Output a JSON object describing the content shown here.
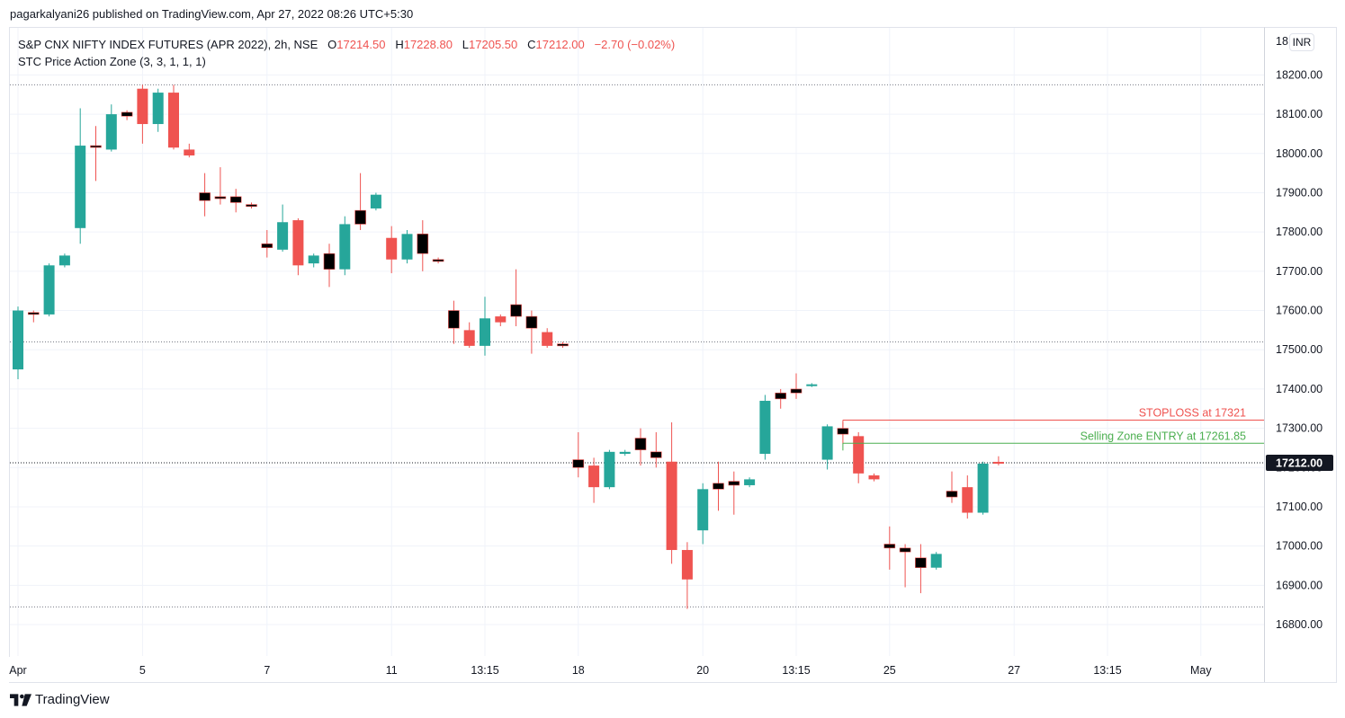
{
  "header": {
    "published_by": "pagarkalyani26 published on TradingView.com, Apr 27, 2022 08:26 UTC+5:30"
  },
  "legend": {
    "symbol": "S&P CNX NIFTY INDEX FUTURES (APR 2022), 2h, NSE",
    "open_label": "O",
    "open": "17214.50",
    "high_label": "H",
    "high": "17228.80",
    "low_label": "L",
    "low": "17205.50",
    "close_label": "C",
    "close": "17212.00",
    "change": "−2.70 (−0.02%)",
    "indicator": "STC Price Action Zone (3, 3, 1, 1, 1)"
  },
  "currency": "INR",
  "footer": {
    "brand": "TradingView",
    "logo_icon": "tradingview-logo-icon"
  },
  "colors": {
    "up": "#26a69a",
    "down": "#ef5350",
    "neutral": "#000000",
    "stoploss": "#ef5350",
    "entry": "#4caf50",
    "grid": "#f0f3fa"
  },
  "chart_data": {
    "type": "candlestick",
    "ylim": [
      16720,
      18320
    ],
    "y_ticks": [
      "18200.00",
      "18100.00",
      "18000.00",
      "17900.00",
      "17800.00",
      "17700.00",
      "17600.00",
      "17500.00",
      "17400.00",
      "17300.00",
      "17200.00",
      "17100.00",
      "17000.00",
      "16900.00",
      "16800.00"
    ],
    "y_tick_values": [
      18200,
      18100,
      18000,
      17900,
      17800,
      17700,
      17600,
      17500,
      17400,
      17300,
      17200,
      17100,
      17000,
      16900,
      16800
    ],
    "top_tick_partial": "18",
    "x_labels": [
      {
        "label": "Apr",
        "bar": 0
      },
      {
        "label": "5",
        "bar": 8
      },
      {
        "label": "7",
        "bar": 16
      },
      {
        "label": "11",
        "bar": 24
      },
      {
        "label": "13:15",
        "bar": 30
      },
      {
        "label": "18",
        "bar": 36
      },
      {
        "label": "20",
        "bar": 44
      },
      {
        "label": "13:15",
        "bar": 50
      },
      {
        "label": "25",
        "bar": 56
      },
      {
        "label": "27",
        "bar": 64
      },
      {
        "label": "13:15",
        "bar": 70
      },
      {
        "label": "May",
        "bar": 76
      }
    ],
    "last_price": "17212.00",
    "last_price_value": 17212,
    "reference_levels": [
      18175,
      17520,
      16845
    ],
    "candles": [
      {
        "o": 17450,
        "h": 17610,
        "l": 17425,
        "c": 17600,
        "t": "up"
      },
      {
        "o": 17595,
        "h": 17600,
        "l": 17570,
        "c": 17590,
        "t": "neutral"
      },
      {
        "o": 17590,
        "h": 17720,
        "l": 17585,
        "c": 17715,
        "t": "up"
      },
      {
        "o": 17715,
        "h": 17745,
        "l": 17710,
        "c": 17740,
        "t": "up"
      },
      {
        "o": 17810,
        "h": 18115,
        "l": 17770,
        "c": 18020,
        "t": "up"
      },
      {
        "o": 18020,
        "h": 18070,
        "l": 17930,
        "c": 18020,
        "t": "neutral"
      },
      {
        "o": 18010,
        "h": 18125,
        "l": 18005,
        "c": 18100,
        "t": "up"
      },
      {
        "o": 18105,
        "h": 18110,
        "l": 18085,
        "c": 18095,
        "t": "neutral"
      },
      {
        "o": 18165,
        "h": 18175,
        "l": 18025,
        "c": 18075,
        "t": "down"
      },
      {
        "o": 18075,
        "h": 18165,
        "l": 18055,
        "c": 18155,
        "t": "up"
      },
      {
        "o": 18155,
        "h": 18175,
        "l": 18010,
        "c": 18015,
        "t": "down"
      },
      {
        "o": 18010,
        "h": 18025,
        "l": 17990,
        "c": 17995,
        "t": "down"
      },
      {
        "o": 17900,
        "h": 17950,
        "l": 17840,
        "c": 17880,
        "t": "neutral"
      },
      {
        "o": 17885,
        "h": 17965,
        "l": 17870,
        "c": 17890,
        "t": "neutral"
      },
      {
        "o": 17890,
        "h": 17910,
        "l": 17850,
        "c": 17875,
        "t": "neutral"
      },
      {
        "o": 17870,
        "h": 17875,
        "l": 17860,
        "c": 17865,
        "t": "neutral"
      },
      {
        "o": 17770,
        "h": 17805,
        "l": 17735,
        "c": 17760,
        "t": "neutral"
      },
      {
        "o": 17755,
        "h": 17870,
        "l": 17750,
        "c": 17825,
        "t": "up"
      },
      {
        "o": 17830,
        "h": 17835,
        "l": 17690,
        "c": 17715,
        "t": "down"
      },
      {
        "o": 17720,
        "h": 17745,
        "l": 17710,
        "c": 17740,
        "t": "up"
      },
      {
        "o": 17745,
        "h": 17770,
        "l": 17660,
        "c": 17705,
        "t": "neutral"
      },
      {
        "o": 17705,
        "h": 17840,
        "l": 17690,
        "c": 17820,
        "t": "up"
      },
      {
        "o": 17820,
        "h": 17950,
        "l": 17805,
        "c": 17855,
        "t": "neutral"
      },
      {
        "o": 17860,
        "h": 17900,
        "l": 17855,
        "c": 17895,
        "t": "up"
      },
      {
        "o": 17785,
        "h": 17815,
        "l": 17695,
        "c": 17730,
        "t": "down"
      },
      {
        "o": 17730,
        "h": 17805,
        "l": 17720,
        "c": 17795,
        "t": "up"
      },
      {
        "o": 17795,
        "h": 17830,
        "l": 17700,
        "c": 17745,
        "t": "neutral"
      },
      {
        "o": 17730,
        "h": 17735,
        "l": 17720,
        "c": 17725,
        "t": "neutral"
      },
      {
        "o": 17600,
        "h": 17625,
        "l": 17515,
        "c": 17555,
        "t": "neutral"
      },
      {
        "o": 17550,
        "h": 17570,
        "l": 17505,
        "c": 17510,
        "t": "down"
      },
      {
        "o": 17510,
        "h": 17635,
        "l": 17485,
        "c": 17580,
        "t": "up"
      },
      {
        "o": 17585,
        "h": 17590,
        "l": 17560,
        "c": 17570,
        "t": "down"
      },
      {
        "o": 17615,
        "h": 17705,
        "l": 17560,
        "c": 17585,
        "t": "neutral"
      },
      {
        "o": 17585,
        "h": 17600,
        "l": 17490,
        "c": 17555,
        "t": "neutral"
      },
      {
        "o": 17545,
        "h": 17555,
        "l": 17505,
        "c": 17510,
        "t": "down"
      },
      {
        "o": 17510,
        "h": 17520,
        "l": 17505,
        "c": 17515,
        "t": "neutral"
      },
      {
        "o": 17220,
        "h": 17290,
        "l": 17175,
        "c": 17200,
        "t": "neutral"
      },
      {
        "o": 17205,
        "h": 17225,
        "l": 17110,
        "c": 17150,
        "t": "down"
      },
      {
        "o": 17150,
        "h": 17245,
        "l": 17145,
        "c": 17240,
        "t": "up"
      },
      {
        "o": 17240,
        "h": 17245,
        "l": 17230,
        "c": 17235,
        "t": "up"
      },
      {
        "o": 17275,
        "h": 17300,
        "l": 17205,
        "c": 17245,
        "t": "neutral"
      },
      {
        "o": 17240,
        "h": 17290,
        "l": 17200,
        "c": 17225,
        "t": "neutral"
      },
      {
        "o": 17215,
        "h": 17315,
        "l": 16955,
        "c": 16990,
        "t": "down"
      },
      {
        "o": 16990,
        "h": 17010,
        "l": 16840,
        "c": 16915,
        "t": "down"
      },
      {
        "o": 17040,
        "h": 17160,
        "l": 17005,
        "c": 17145,
        "t": "up"
      },
      {
        "o": 17145,
        "h": 17215,
        "l": 17090,
        "c": 17160,
        "t": "neutral"
      },
      {
        "o": 17165,
        "h": 17190,
        "l": 17080,
        "c": 17155,
        "t": "neutral"
      },
      {
        "o": 17155,
        "h": 17175,
        "l": 17150,
        "c": 17170,
        "t": "up"
      },
      {
        "o": 17235,
        "h": 17385,
        "l": 17220,
        "c": 17370,
        "t": "up"
      },
      {
        "o": 17375,
        "h": 17400,
        "l": 17350,
        "c": 17390,
        "t": "neutral"
      },
      {
        "o": 17390,
        "h": 17440,
        "l": 17375,
        "c": 17400,
        "t": "neutral"
      },
      {
        "o": 17410,
        "h": 17415,
        "l": 17405,
        "c": 17412,
        "t": "up"
      },
      {
        "o": 17220,
        "h": 17310,
        "l": 17195,
        "c": 17305,
        "t": "up"
      },
      {
        "o": 17300,
        "h": 17315,
        "l": 17260,
        "c": 17285,
        "t": "neutral"
      },
      {
        "o": 17280,
        "h": 17290,
        "l": 17160,
        "c": 17185,
        "t": "down"
      },
      {
        "o": 17180,
        "h": 17185,
        "l": 17165,
        "c": 17170,
        "t": "down"
      },
      {
        "o": 17005,
        "h": 17050,
        "l": 16940,
        "c": 16995,
        "t": "neutral"
      },
      {
        "o": 16995,
        "h": 17005,
        "l": 16895,
        "c": 16985,
        "t": "neutral"
      },
      {
        "o": 16970,
        "h": 17005,
        "l": 16880,
        "c": 16945,
        "t": "neutral"
      },
      {
        "o": 16945,
        "h": 16985,
        "l": 16940,
        "c": 16980,
        "t": "up"
      },
      {
        "o": 17140,
        "h": 17190,
        "l": 17110,
        "c": 17125,
        "t": "neutral"
      },
      {
        "o": 17150,
        "h": 17180,
        "l": 17070,
        "c": 17085,
        "t": "down"
      },
      {
        "o": 17085,
        "h": 17215,
        "l": 17080,
        "c": 17210,
        "t": "up"
      },
      {
        "o": 17214.5,
        "h": 17228.8,
        "l": 17205.5,
        "c": 17212,
        "t": "down"
      }
    ],
    "annotations": [
      {
        "text": "STOPLOSS at 17321",
        "value": 17321,
        "from_bar": 53,
        "color": "stoploss"
      },
      {
        "text": "Selling Zone ENTRY at 17261.85",
        "value": 17261.85,
        "from_bar": 53,
        "color": "entry"
      }
    ]
  }
}
